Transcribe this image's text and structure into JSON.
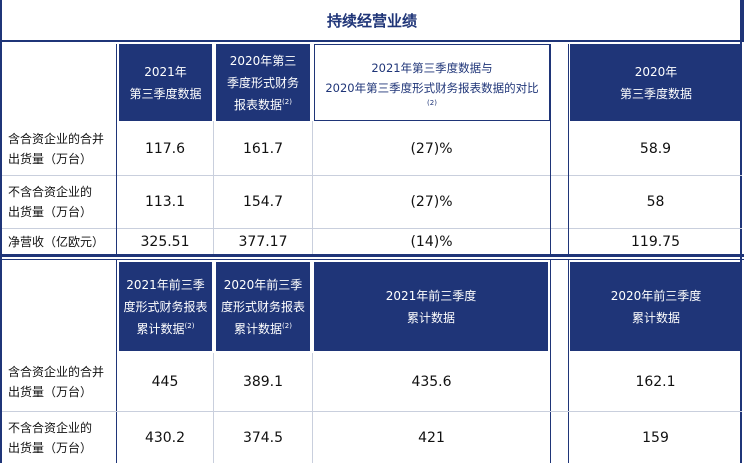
{
  "title": "持续经营业绩",
  "q3": {
    "headers": [
      {
        "line1": "2021年",
        "line2": "第三季度数据",
        "note": ""
      },
      {
        "line1": "2020年第三",
        "line2": "季度形式财务",
        "line3": "报表数据",
        "note": "(2)"
      },
      {
        "line1": "2021年第三季度数据与",
        "line2": "2020年第三季度形式财务报表数据的对比",
        "note": "(2)"
      },
      {
        "line1": "2020年",
        "line2": "第三季度数据",
        "note": ""
      }
    ],
    "rows": [
      {
        "label1": "含合资企业的合并",
        "label2": "出货量（万台）",
        "values": [
          "117.6",
          "161.7",
          "(27)%",
          "58.9"
        ]
      },
      {
        "label1": "不含合资企业的",
        "label2": "出货量（万台）",
        "values": [
          "113.1",
          "154.7",
          "(27)%",
          "58"
        ]
      },
      {
        "label1": "净营收（亿欧元）",
        "label2": "",
        "values": [
          "325.51",
          "377.17",
          "(14)%",
          "119.75"
        ]
      }
    ]
  },
  "ytd": {
    "headers": [
      {
        "line1": "2021年前三季",
        "line2": "度形式财务报表",
        "line3": "累计数据",
        "note": "(2)"
      },
      {
        "line1": "2020年前三季",
        "line2": "度形式财务报表",
        "line3": "累计数据",
        "note": "(2)"
      },
      {
        "line1": "2021年前三季度",
        "line2": "累计数据",
        "note": ""
      },
      {
        "line1": "2020年前三季度",
        "line2": "累计数据",
        "note": ""
      }
    ],
    "rows": [
      {
        "label1": "含合资企业的合并",
        "label2": "出货量（万台）",
        "values": [
          "445",
          "389.1",
          "435.6",
          "162.1"
        ]
      },
      {
        "label1": "不含合资企业的",
        "label2": "出货量（万台）",
        "values": [
          "430.2",
          "374.5",
          "421",
          "159"
        ]
      }
    ]
  },
  "colors": {
    "navy": "#1f3578",
    "rule": "#c9cfdd"
  }
}
